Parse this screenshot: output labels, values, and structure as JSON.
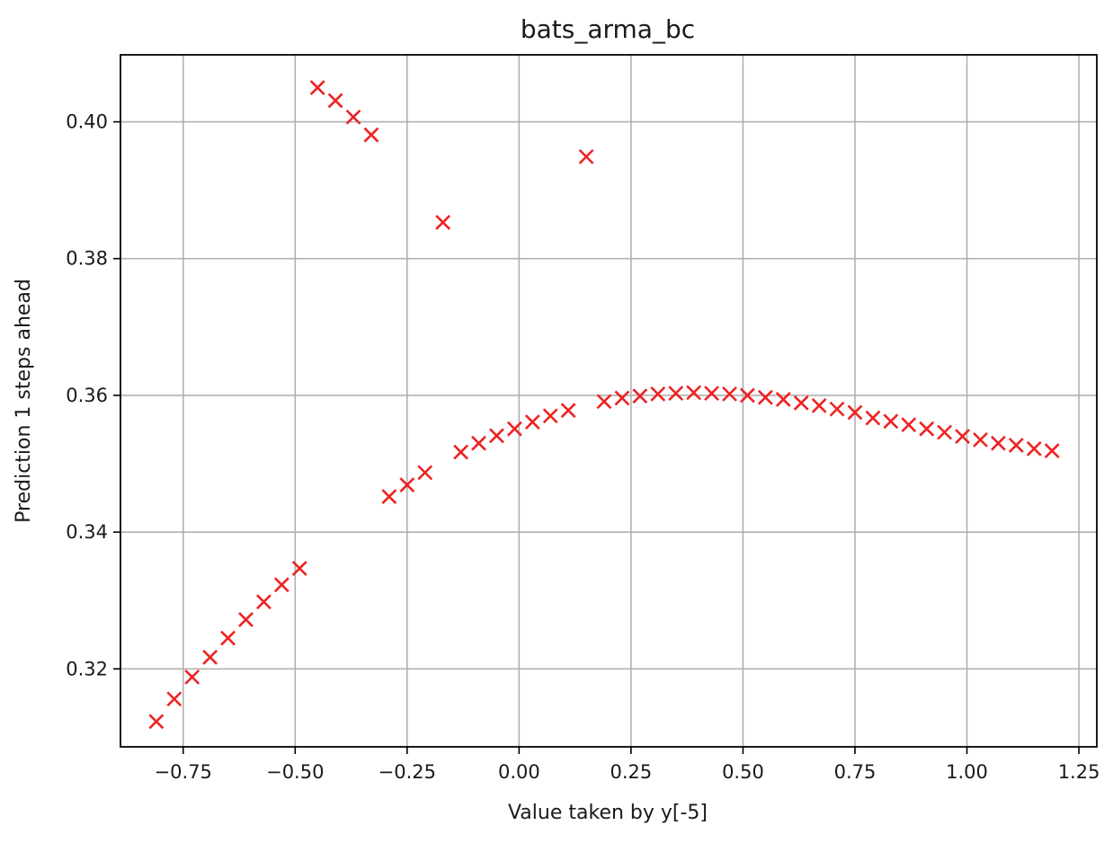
{
  "chart_data": {
    "type": "scatter",
    "title": "bats_arma_bc",
    "xlabel": "Value taken by y[-5]",
    "ylabel": "Prediction 1 steps ahead",
    "xlim": [
      -0.89,
      1.29
    ],
    "ylim": [
      0.3086,
      0.4098
    ],
    "xticks": [
      -0.75,
      -0.5,
      -0.25,
      0.0,
      0.25,
      0.5,
      0.75,
      1.0,
      1.25
    ],
    "xtick_labels": [
      "−0.75",
      "−0.50",
      "−0.25",
      "0.00",
      "0.25",
      "0.50",
      "0.75",
      "1.00",
      "1.25"
    ],
    "yticks": [
      0.32,
      0.34,
      0.36,
      0.38,
      0.4
    ],
    "ytick_labels": [
      "0.32",
      "0.34",
      "0.36",
      "0.38",
      "0.40"
    ],
    "grid": true,
    "marker": "x",
    "marker_color": "#ee2222",
    "points": [
      {
        "x": -0.81,
        "y": 0.3123
      },
      {
        "x": -0.77,
        "y": 0.3156
      },
      {
        "x": -0.73,
        "y": 0.3188
      },
      {
        "x": -0.69,
        "y": 0.3217
      },
      {
        "x": -0.65,
        "y": 0.3245
      },
      {
        "x": -0.61,
        "y": 0.3272
      },
      {
        "x": -0.57,
        "y": 0.3298
      },
      {
        "x": -0.53,
        "y": 0.3323
      },
      {
        "x": -0.49,
        "y": 0.3347
      },
      {
        "x": -0.45,
        "y": 0.405
      },
      {
        "x": -0.41,
        "y": 0.4031
      },
      {
        "x": -0.37,
        "y": 0.4007
      },
      {
        "x": -0.33,
        "y": 0.3981
      },
      {
        "x": -0.29,
        "y": 0.3452
      },
      {
        "x": -0.25,
        "y": 0.3469
      },
      {
        "x": -0.21,
        "y": 0.3487
      },
      {
        "x": -0.17,
        "y": 0.3853
      },
      {
        "x": -0.13,
        "y": 0.3517
      },
      {
        "x": -0.09,
        "y": 0.353
      },
      {
        "x": -0.05,
        "y": 0.3541
      },
      {
        "x": -0.01,
        "y": 0.3551
      },
      {
        "x": 0.03,
        "y": 0.3561
      },
      {
        "x": 0.07,
        "y": 0.357
      },
      {
        "x": 0.11,
        "y": 0.3578
      },
      {
        "x": 0.15,
        "y": 0.3949
      },
      {
        "x": 0.19,
        "y": 0.3591
      },
      {
        "x": 0.23,
        "y": 0.3596
      },
      {
        "x": 0.27,
        "y": 0.3599
      },
      {
        "x": 0.31,
        "y": 0.3602
      },
      {
        "x": 0.35,
        "y": 0.3603
      },
      {
        "x": 0.39,
        "y": 0.3604
      },
      {
        "x": 0.43,
        "y": 0.3603
      },
      {
        "x": 0.47,
        "y": 0.3602
      },
      {
        "x": 0.51,
        "y": 0.36
      },
      {
        "x": 0.55,
        "y": 0.3597
      },
      {
        "x": 0.59,
        "y": 0.3594
      },
      {
        "x": 0.63,
        "y": 0.3589
      },
      {
        "x": 0.67,
        "y": 0.3585
      },
      {
        "x": 0.71,
        "y": 0.358
      },
      {
        "x": 0.75,
        "y": 0.3575
      },
      {
        "x": 0.79,
        "y": 0.3567
      },
      {
        "x": 0.83,
        "y": 0.3562
      },
      {
        "x": 0.87,
        "y": 0.3557
      },
      {
        "x": 0.91,
        "y": 0.3551
      },
      {
        "x": 0.95,
        "y": 0.3546
      },
      {
        "x": 0.99,
        "y": 0.354
      },
      {
        "x": 1.03,
        "y": 0.3535
      },
      {
        "x": 1.07,
        "y": 0.353
      },
      {
        "x": 1.11,
        "y": 0.3527
      },
      {
        "x": 1.15,
        "y": 0.3522
      },
      {
        "x": 1.19,
        "y": 0.3519
      }
    ]
  }
}
